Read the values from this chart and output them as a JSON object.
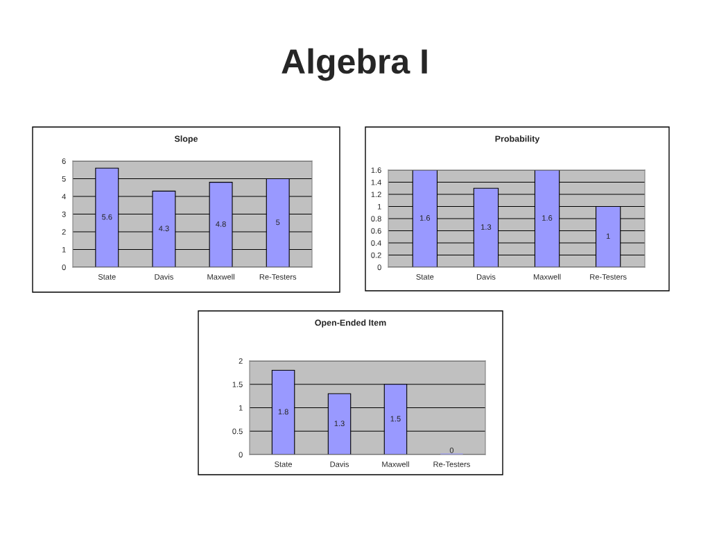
{
  "chart_data": [
    {
      "type": "bar",
      "title": "Slope",
      "annotations": [
        "Algebra I"
      ],
      "categories": [
        "State",
        "Davis",
        "Maxwell",
        "Re-Testers"
      ],
      "values": [
        5.6,
        4.3,
        4.8,
        5
      ],
      "color": "#9999ff",
      "ylim": [
        0,
        6
      ],
      "yticks": [
        0,
        1,
        2,
        3,
        4,
        5,
        6
      ],
      "grid": "y",
      "data_labels": true
    },
    {
      "type": "bar",
      "title": "Probability",
      "categories": [
        "State",
        "Davis",
        "Maxwell",
        "Re-Testers"
      ],
      "values": [
        1.6,
        1.3,
        1.6,
        1
      ],
      "color": "#9999ff",
      "ylim": [
        0,
        1.6
      ],
      "yticks": [
        0,
        {
          "value": 0.2,
          "label": "0.2"
        },
        {
          "value": 0.4,
          "label": "0.4"
        },
        {
          "value": 0.6,
          "label": "0.6"
        },
        {
          "value": 0.8,
          "label": "0.8"
        },
        1,
        {
          "value": 1.2,
          "label": "1.2"
        },
        {
          "value": 1.4,
          "label": "1.4"
        },
        {
          "value": 1.6,
          "label": "1.6"
        }
      ],
      "grid": "y",
      "data_labels": true
    },
    {
      "type": "bar",
      "title": "Open-Ended Item",
      "categories": [
        "State",
        "Davis",
        "Maxwell",
        "Re-Testers"
      ],
      "values": [
        1.8,
        1.3,
        1.5,
        0
      ],
      "color": "#9999ff",
      "ylim": [
        0,
        2
      ],
      "yticks": [
        0,
        0.5,
        1,
        1.5,
        2
      ],
      "grid": "y",
      "data_labels": true
    }
  ]
}
